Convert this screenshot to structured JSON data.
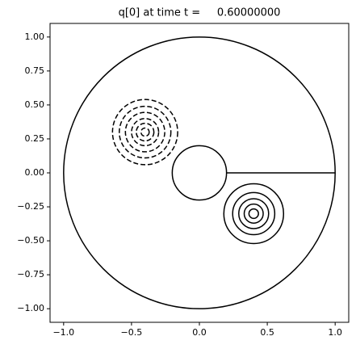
{
  "chart_data": {
    "type": "contour",
    "title": "q[0] at time t =     0.60000000",
    "xlim": [
      -1.1,
      1.1
    ],
    "ylim": [
      -1.1,
      1.1
    ],
    "xticks": [
      {
        "value": -1,
        "label": "−1.0"
      },
      {
        "value": -0.5,
        "label": "−0.5"
      },
      {
        "value": 0,
        "label": "0.0"
      },
      {
        "value": 0.5,
        "label": "0.5"
      },
      {
        "value": 1,
        "label": "1.0"
      }
    ],
    "yticks": [
      {
        "value": -1,
        "label": "−1.00"
      },
      {
        "value": -0.75,
        "label": "−0.75"
      },
      {
        "value": -0.5,
        "label": "−0.50"
      },
      {
        "value": -0.25,
        "label": "−0.25"
      },
      {
        "value": 0,
        "label": "0.00"
      },
      {
        "value": 0.25,
        "label": "0.25"
      },
      {
        "value": 0.5,
        "label": "0.50"
      },
      {
        "value": 0.75,
        "label": "0.75"
      },
      {
        "value": 1,
        "label": "1.00"
      }
    ],
    "color": "#000000",
    "boundary_circles": [
      {
        "center": [
          0,
          0
        ],
        "radius": 1
      },
      {
        "center": [
          0,
          0
        ],
        "radius": 0.2
      }
    ],
    "boundary_segment": {
      "x": [
        0.2,
        1
      ],
      "y": [
        0,
        0
      ]
    },
    "contours": [
      {
        "center": [
          0.4,
          -0.3
        ],
        "radii": [
          0.22,
          0.155,
          0.11,
          0.07,
          0.035
        ],
        "style": "solid"
      },
      {
        "center": [
          -0.4,
          0.3
        ],
        "radii": [
          0.24,
          0.19,
          0.145,
          0.1,
          0.065,
          0.03
        ],
        "style": "dashed"
      }
    ]
  }
}
